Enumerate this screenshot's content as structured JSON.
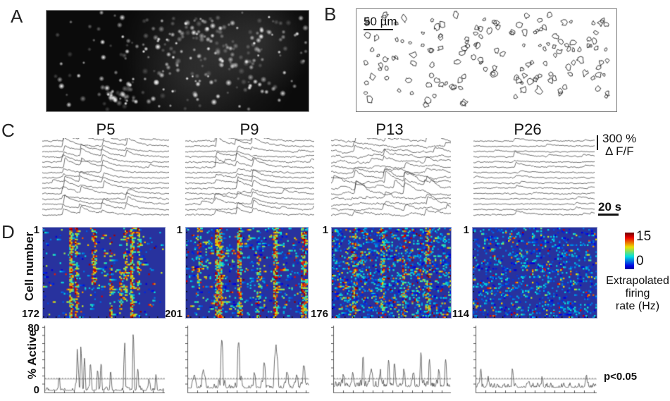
{
  "panels": {
    "a": {
      "label": "A",
      "kind": "fluorescence image of labeled cells"
    },
    "b": {
      "label": "B",
      "scale_bar": "50 µm",
      "kind": "cell contour map"
    },
    "c": {
      "label": "C",
      "ages": [
        "P5",
        "P9",
        "P13",
        "P26"
      ],
      "amp_scale_value": "300 %",
      "amp_scale_unit": "Δ F/F",
      "time_scale": "20 s"
    },
    "d": {
      "label": "D",
      "y_axis_label": "Cell number",
      "first_cell": "1",
      "cell_counts": [
        "172",
        "201",
        "176",
        "114"
      ],
      "colorbar": {
        "max": "15",
        "min": "0",
        "title1": "Extrapolated",
        "title2": "firing",
        "title3": "rate (Hz)"
      },
      "active": {
        "ylabel": "% Active",
        "ymax": "80",
        "ymin": "0",
        "significance": "p<0.05"
      }
    }
  },
  "chart_data": [
    {
      "age": "P5",
      "raster": {
        "type": "heatmap",
        "n_cells": 172,
        "value_range": [
          0,
          15
        ],
        "colormap": "jet",
        "background_value": 0,
        "scatter_density": 0.035,
        "run_prob": 0.35,
        "sync_events": [
          [
            0.22,
            0.03,
            0.8,
            0,
            1
          ],
          [
            0.27,
            0.022,
            0.45,
            0,
            1
          ],
          [
            0.41,
            0.028,
            0.55,
            0,
            0.62
          ],
          [
            0.5,
            0.02,
            0.22,
            0.2,
            0.8
          ],
          [
            0.55,
            0.025,
            0.4,
            0.15,
            1
          ],
          [
            0.63,
            0.02,
            0.3,
            0.4,
            1
          ],
          [
            0.67,
            0.025,
            0.35,
            0,
            0.8
          ],
          [
            0.72,
            0.03,
            0.75,
            0,
            1
          ],
          [
            0.78,
            0.025,
            0.45,
            0,
            0.7
          ]
        ]
      },
      "traces": {
        "n_traces": 15,
        "events_x": [
          0.17,
          0.3,
          0.48,
          0.67
        ],
        "participation": 0.85,
        "amp": 9,
        "noise": 1.6,
        "wander": 0.4,
        "row_events": 1,
        "row_boosts": []
      },
      "percent_active": {
        "type": "line",
        "ylim": [
          0,
          80
        ],
        "threshold": 17,
        "base": 3,
        "jitter": 3,
        "peak_width": 0.008,
        "peaks": [
          [
            0.12,
            16
          ],
          [
            0.27,
            52
          ],
          [
            0.3,
            55
          ],
          [
            0.33,
            40
          ],
          [
            0.38,
            35
          ],
          [
            0.44,
            25
          ],
          [
            0.47,
            33
          ],
          [
            0.55,
            24
          ],
          [
            0.67,
            60
          ],
          [
            0.74,
            70
          ],
          [
            0.78,
            28
          ],
          [
            0.87,
            14
          ],
          [
            0.93,
            20
          ]
        ]
      }
    },
    {
      "age": "P9",
      "raster": {
        "type": "heatmap",
        "n_cells": 201,
        "value_range": [
          0,
          15
        ],
        "colormap": "jet",
        "background_value": 0,
        "scatter_density": 0.1,
        "run_prob": 0.3,
        "sync_events": [
          [
            0.1,
            0.03,
            0.3,
            0,
            0.6
          ],
          [
            0.26,
            0.05,
            0.6,
            0,
            1
          ],
          [
            0.43,
            0.04,
            0.6,
            0,
            1
          ],
          [
            0.59,
            0.03,
            0.35,
            0.3,
            1
          ],
          [
            0.73,
            0.04,
            0.6,
            0,
            1
          ],
          [
            0.96,
            0.04,
            0.5,
            0,
            1
          ]
        ]
      },
      "traces": {
        "n_traces": 15,
        "events_x": [
          0.24,
          0.4,
          0.52
        ],
        "participation": 0.8,
        "amp": 10,
        "noise": 1.7,
        "wander": 0.5,
        "row_events": 2,
        "row_boosts": []
      },
      "percent_active": {
        "type": "line",
        "ylim": [
          0,
          80
        ],
        "threshold": 17,
        "base": 6,
        "jitter": 4,
        "peak_width": 0.014,
        "peaks": [
          [
            0.05,
            16
          ],
          [
            0.13,
            20
          ],
          [
            0.28,
            60
          ],
          [
            0.42,
            58
          ],
          [
            0.55,
            16
          ],
          [
            0.63,
            30
          ],
          [
            0.73,
            55
          ],
          [
            0.82,
            20
          ],
          [
            0.9,
            16
          ],
          [
            0.96,
            28
          ]
        ]
      }
    },
    {
      "age": "P13",
      "raster": {
        "type": "heatmap",
        "n_cells": 176,
        "value_range": [
          0,
          15
        ],
        "colormap": "jet",
        "background_value": 0,
        "scatter_density": 0.22,
        "run_prob": 0.25,
        "sync_events": [
          [
            0.18,
            0.04,
            0.28,
            0,
            1
          ],
          [
            0.42,
            0.04,
            0.28,
            0,
            1
          ],
          [
            0.6,
            0.04,
            0.25,
            0,
            1
          ],
          [
            0.8,
            0.04,
            0.28,
            0,
            1
          ]
        ]
      },
      "traces": {
        "n_traces": 15,
        "events_x": [
          0.2,
          0.45,
          0.62,
          0.8
        ],
        "participation": 0.55,
        "amp": 8,
        "noise": 2.0,
        "wander": 2.2,
        "row_events": 3,
        "row_boosts": [
          [
            8,
            2
          ],
          [
            9,
            2.4
          ],
          [
            10,
            1.7
          ]
        ]
      },
      "percent_active": {
        "type": "line",
        "ylim": [
          0,
          80
        ],
        "threshold": 17,
        "base": 8,
        "jitter": 6,
        "peak_width": 0.009,
        "peaks": [
          [
            0.08,
            14
          ],
          [
            0.16,
            18
          ],
          [
            0.25,
            38
          ],
          [
            0.32,
            22
          ],
          [
            0.4,
            20
          ],
          [
            0.47,
            33
          ],
          [
            0.52,
            28
          ],
          [
            0.6,
            22
          ],
          [
            0.68,
            18
          ],
          [
            0.75,
            40
          ],
          [
            0.82,
            33
          ],
          [
            0.9,
            22
          ],
          [
            0.96,
            26
          ]
        ]
      }
    },
    {
      "age": "P26",
      "raster": {
        "type": "heatmap",
        "n_cells": 114,
        "value_range": [
          0,
          15
        ],
        "colormap": "jet",
        "background_value": 0,
        "scatter_density": 0.16,
        "run_prob": 0.15,
        "low_bias": true,
        "sync_events": []
      },
      "traces": {
        "n_traces": 15,
        "events_x": [
          0.35
        ],
        "participation": 0.25,
        "amp": 6,
        "noise": 1.4,
        "wander": 0.3,
        "row_events": 2,
        "row_boosts": []
      },
      "percent_active": {
        "type": "line",
        "ylim": [
          0,
          80
        ],
        "threshold": 17,
        "base": 7,
        "jitter": 5,
        "peak_width": 0.007,
        "peaks": [
          [
            0.04,
            18
          ],
          [
            0.1,
            14
          ],
          [
            0.3,
            20
          ],
          [
            0.55,
            12
          ],
          [
            0.92,
            18
          ]
        ]
      }
    }
  ]
}
